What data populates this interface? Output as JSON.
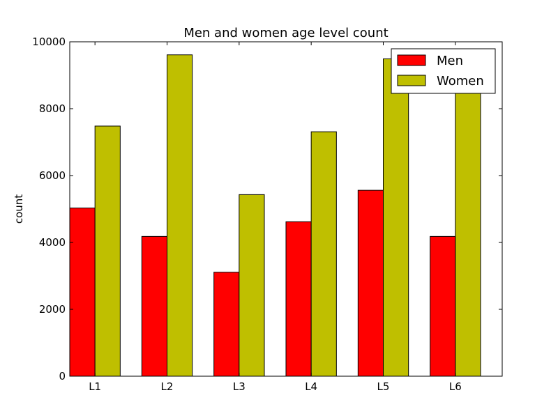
{
  "chart_data": {
    "type": "bar",
    "title": "Men and women age level count",
    "xlabel": "",
    "ylabel": "count",
    "categories": [
      "L1",
      "L2",
      "L3",
      "L4",
      "L5",
      "L6"
    ],
    "series": [
      {
        "name": "Men",
        "color": "#ff0000",
        "values": [
          5030,
          4180,
          3110,
          4620,
          5560,
          4180
        ]
      },
      {
        "name": "Women",
        "color": "#bfbf00",
        "values": [
          7480,
          9610,
          5430,
          7310,
          9490,
          9490
        ]
      }
    ],
    "ylim": [
      0,
      10000
    ],
    "yticks": [
      "0",
      "2000",
      "4000",
      "6000",
      "8000",
      "10000"
    ],
    "ytick_values": [
      0,
      2000,
      4000,
      6000,
      8000,
      10000
    ],
    "grid": false,
    "legend_position": "top-right"
  }
}
